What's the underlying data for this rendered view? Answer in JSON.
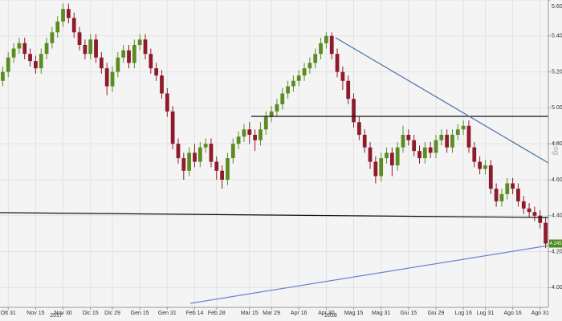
{
  "chart_data": {
    "type": "candlestick",
    "categories": [
      null,
      "Ott 31",
      null,
      null,
      null,
      null,
      "Nov 15",
      null,
      null,
      null,
      null,
      "Nov 30",
      null,
      null,
      null,
      null,
      "Dic 15",
      null,
      null,
      null,
      "Dic 29",
      null,
      null,
      null,
      null,
      "Gen 15",
      null,
      null,
      null,
      null,
      "Gen 31",
      null,
      null,
      null,
      null,
      "Feb 14",
      null,
      null,
      null,
      "Feb 28",
      null,
      null,
      null,
      null,
      null,
      "Mar 15",
      null,
      null,
      null,
      "Mar 29",
      null,
      null,
      null,
      null,
      "Apr 16",
      null,
      null,
      null,
      null,
      "Apr 30",
      null,
      null,
      null,
      null,
      "Mag 15",
      null,
      null,
      null,
      null,
      "Mag 31",
      null,
      null,
      null,
      null,
      "Giu 15",
      null,
      null,
      null,
      null,
      "Giu 29",
      null,
      null,
      null,
      null,
      "Lug 16",
      null,
      null,
      null,
      "Lug 31",
      null,
      null,
      null,
      null,
      "Ago 16",
      null,
      null,
      null,
      null,
      "Ago 31",
      null
    ],
    "year_labels": [
      "2017",
      "2018"
    ],
    "open": [
      5.15,
      5.2,
      5.28,
      5.33,
      5.36,
      5.3,
      5.26,
      5.22,
      5.3,
      5.36,
      5.42,
      5.48,
      5.55,
      5.5,
      5.42,
      5.35,
      5.3,
      5.38,
      5.28,
      5.22,
      5.12,
      5.2,
      5.28,
      5.32,
      5.25,
      5.35,
      5.38,
      5.3,
      5.22,
      5.18,
      5.08,
      4.98,
      4.8,
      4.72,
      4.65,
      4.75,
      4.7,
      4.78,
      4.8,
      4.7,
      4.65,
      4.6,
      4.72,
      4.8,
      4.84,
      4.88,
      4.85,
      4.82,
      4.88,
      4.95,
      4.98,
      5.02,
      5.08,
      5.12,
      5.15,
      5.18,
      5.22,
      5.25,
      5.3,
      5.36,
      5.4,
      5.3,
      5.2,
      5.15,
      5.05,
      4.92,
      4.85,
      4.78,
      4.7,
      4.62,
      4.72,
      4.75,
      4.68,
      4.78,
      4.85,
      4.82,
      4.76,
      4.72,
      4.78,
      4.75,
      4.82,
      4.85,
      4.78,
      4.85,
      4.88,
      4.9,
      4.78,
      4.7,
      4.66,
      4.68,
      4.55,
      4.48,
      4.52,
      4.58,
      4.55,
      4.48,
      4.44,
      4.42,
      4.4,
      4.36
    ],
    "high": [
      5.23,
      5.31,
      5.36,
      5.39,
      5.39,
      5.33,
      5.29,
      5.33,
      5.39,
      5.45,
      5.51,
      5.58,
      5.58,
      5.53,
      5.45,
      5.38,
      5.41,
      5.41,
      5.31,
      5.25,
      5.23,
      5.31,
      5.35,
      5.35,
      5.38,
      5.41,
      5.41,
      5.33,
      5.25,
      5.21,
      5.11,
      5.01,
      4.83,
      4.75,
      4.78,
      4.8,
      4.81,
      4.83,
      4.83,
      4.73,
      4.68,
      4.75,
      4.83,
      4.87,
      4.91,
      4.92,
      4.88,
      4.92,
      4.98,
      5.01,
      5.05,
      5.11,
      5.15,
      5.18,
      5.21,
      5.25,
      5.28,
      5.33,
      5.39,
      5.42,
      5.42,
      5.33,
      5.23,
      5.18,
      5.08,
      4.95,
      4.88,
      4.81,
      4.73,
      4.75,
      4.78,
      4.78,
      4.81,
      4.9,
      4.88,
      4.85,
      4.79,
      4.81,
      4.81,
      4.85,
      4.88,
      4.88,
      4.88,
      4.91,
      4.93,
      4.93,
      4.81,
      4.73,
      4.71,
      4.71,
      4.58,
      4.55,
      4.61,
      4.61,
      4.58,
      4.51,
      4.47,
      4.45,
      4.43,
      4.39
    ],
    "low": [
      5.12,
      5.17,
      5.25,
      5.3,
      5.27,
      5.23,
      5.19,
      5.19,
      5.27,
      5.33,
      5.39,
      5.45,
      5.47,
      5.39,
      5.32,
      5.27,
      5.27,
      5.25,
      5.19,
      5.07,
      5.09,
      5.17,
      5.25,
      5.22,
      5.22,
      5.32,
      5.27,
      5.19,
      5.15,
      5.05,
      4.95,
      4.77,
      4.69,
      4.6,
      4.62,
      4.67,
      4.67,
      4.75,
      4.67,
      4.6,
      4.55,
      4.57,
      4.69,
      4.77,
      4.81,
      4.8,
      4.76,
      4.79,
      4.85,
      4.92,
      4.95,
      4.99,
      5.05,
      5.09,
      5.12,
      5.15,
      5.19,
      5.22,
      5.27,
      5.33,
      5.27,
      5.17,
      5.1,
      5.02,
      4.89,
      4.82,
      4.75,
      4.66,
      4.58,
      4.59,
      4.69,
      4.62,
      4.65,
      4.75,
      4.79,
      4.73,
      4.69,
      4.69,
      4.72,
      4.72,
      4.79,
      4.75,
      4.75,
      4.82,
      4.85,
      4.75,
      4.67,
      4.63,
      4.63,
      4.52,
      4.45,
      4.45,
      4.49,
      4.52,
      4.45,
      4.41,
      4.39,
      4.37,
      4.33,
      4.22
    ],
    "close": [
      5.2,
      5.28,
      5.33,
      5.36,
      5.3,
      5.26,
      5.22,
      5.3,
      5.36,
      5.42,
      5.48,
      5.55,
      5.5,
      5.42,
      5.35,
      5.3,
      5.38,
      5.28,
      5.22,
      5.12,
      5.2,
      5.28,
      5.32,
      5.25,
      5.35,
      5.38,
      5.3,
      5.22,
      5.18,
      5.08,
      4.98,
      4.8,
      4.72,
      4.65,
      4.75,
      4.7,
      4.78,
      4.8,
      4.7,
      4.65,
      4.6,
      4.72,
      4.8,
      4.84,
      4.88,
      4.85,
      4.82,
      4.88,
      4.95,
      4.98,
      5.02,
      5.08,
      5.12,
      5.15,
      5.18,
      5.22,
      5.25,
      5.3,
      5.36,
      5.4,
      5.3,
      5.2,
      5.15,
      5.05,
      4.92,
      4.85,
      4.78,
      4.7,
      4.62,
      4.72,
      4.75,
      4.68,
      4.78,
      4.85,
      4.82,
      4.76,
      4.72,
      4.78,
      4.75,
      4.82,
      4.85,
      4.78,
      4.85,
      4.88,
      4.9,
      4.78,
      4.7,
      4.66,
      4.68,
      4.55,
      4.48,
      4.52,
      4.58,
      4.55,
      4.48,
      4.44,
      4.42,
      4.4,
      4.36,
      4.245
    ],
    "up_color": "#5b8c23",
    "down_color": "#8e1b2c",
    "last_price": 4.245,
    "scale_label": "Log",
    "ylim": [
      3.89,
      5.6
    ],
    "yticks": [
      {
        "value": 4.0,
        "label": "4.00"
      },
      {
        "value": 4.2,
        "label": "4.20"
      },
      {
        "value": 4.4,
        "label": "4.40"
      },
      {
        "value": 4.6,
        "label": "4.60"
      },
      {
        "value": 4.8,
        "label": "4.80"
      },
      {
        "value": 5.0,
        "label": "5.00"
      },
      {
        "value": 5.2,
        "label": "5.20"
      },
      {
        "value": 5.4,
        "label": "5.40"
      },
      {
        "value": 5.6,
        "label": "5.60"
      }
    ],
    "grid": true
  }
}
